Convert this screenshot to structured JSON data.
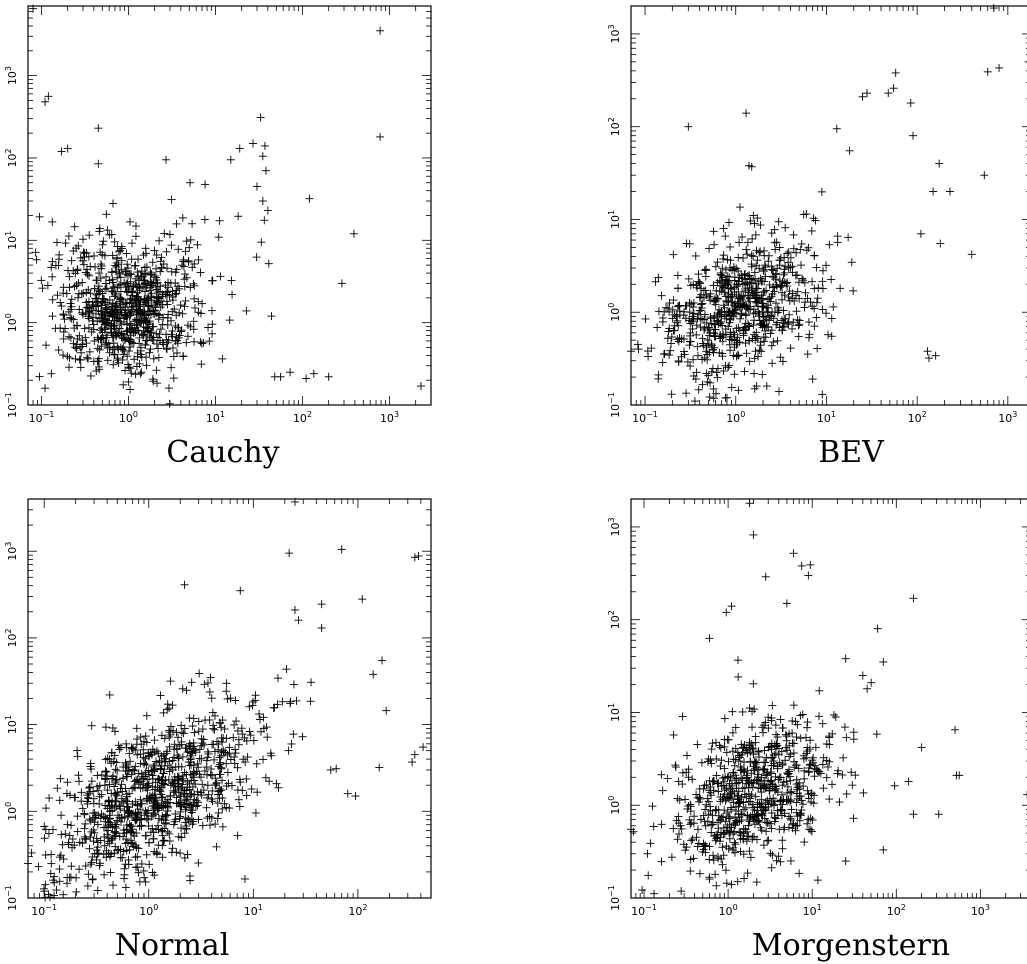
{
  "chart_data": [
    {
      "type": "scatter",
      "xlabel": "Cauchy",
      "scale": "log-log",
      "xlim": [
        0.07,
        3000
      ],
      "ylim": [
        0.1,
        7000
      ],
      "x_ticks": [
        "10^-1",
        "10^0",
        "10^1",
        "10^2",
        "10^3"
      ],
      "y_ticks": [
        "10^-1",
        "10^0",
        "10^1",
        "10^2",
        "10^3"
      ],
      "marker": "+",
      "cloud": {
        "n": 820,
        "center_log": [
          0.0,
          0.15
        ],
        "sd_log": [
          0.4,
          0.38
        ],
        "shape": "x-shaped"
      },
      "points": [
        [
          0.08,
          6500
        ],
        [
          0.11,
          480
        ],
        [
          0.12,
          560
        ],
        [
          0.17,
          120
        ],
        [
          0.2,
          130
        ],
        [
          0.45,
          230
        ],
        [
          0.45,
          85
        ],
        [
          2.7,
          95
        ],
        [
          5.1,
          50
        ],
        [
          15,
          95
        ],
        [
          19,
          130
        ],
        [
          27,
          150
        ],
        [
          33,
          310
        ],
        [
          35,
          105
        ],
        [
          37,
          140
        ],
        [
          38,
          70
        ],
        [
          30,
          45
        ],
        [
          35,
          30
        ],
        [
          40,
          23
        ],
        [
          41,
          5.2
        ],
        [
          44,
          1.2
        ],
        [
          120,
          32
        ],
        [
          390,
          12
        ],
        [
          780,
          3500
        ],
        [
          780,
          180
        ],
        [
          0.11,
          0.16
        ],
        [
          0.13,
          0.24
        ],
        [
          48,
          0.22
        ],
        [
          56,
          0.22
        ],
        [
          72,
          0.25
        ],
        [
          110,
          0.21
        ],
        [
          135,
          0.24
        ],
        [
          200,
          0.22
        ],
        [
          2300,
          0.17
        ]
      ]
    },
    {
      "type": "scatter",
      "xlabel": "BEV",
      "scale": "log-log",
      "xlim": [
        0.07,
        1800
      ],
      "ylim": [
        0.1,
        2000
      ],
      "x_ticks": [
        "10^-1",
        "10^0",
        "10^1",
        "10^2",
        "10^3"
      ],
      "y_ticks": [
        "10^-1",
        "10^0",
        "10^1",
        "10^2",
        "10^3"
      ],
      "marker": "+",
      "cloud": {
        "n": 720,
        "center_log": [
          0.05,
          0.08
        ],
        "sd_log": [
          0.45,
          0.38
        ],
        "shape": "ellipse"
      },
      "points": [
        [
          0.07,
          0.38
        ],
        [
          0.3,
          100
        ],
        [
          1.3,
          140
        ],
        [
          1.4,
          38
        ],
        [
          1.5,
          37
        ],
        [
          13,
          95
        ],
        [
          18,
          55
        ],
        [
          25,
          210
        ],
        [
          28,
          230
        ],
        [
          48,
          230
        ],
        [
          55,
          260
        ],
        [
          58,
          380
        ],
        [
          85,
          180
        ],
        [
          90,
          80
        ],
        [
          110,
          7
        ],
        [
          130,
          0.38
        ],
        [
          135,
          0.32
        ],
        [
          160,
          0.34
        ],
        [
          150,
          20
        ],
        [
          175,
          40
        ],
        [
          180,
          5.5
        ],
        [
          230,
          20
        ],
        [
          400,
          4.2
        ],
        [
          550,
          30
        ],
        [
          600,
          390
        ],
        [
          700,
          1900
        ],
        [
          800,
          430
        ],
        [
          1700,
          500
        ],
        [
          0.8,
          0.12
        ],
        [
          1.7,
          0.16
        ],
        [
          2.2,
          0.16
        ],
        [
          3,
          0.14
        ],
        [
          9,
          0.13
        ]
      ]
    },
    {
      "type": "scatter",
      "xlabel": "Normal",
      "scale": "log-log",
      "xlim": [
        0.07,
        500
      ],
      "ylim": [
        0.1,
        4000
      ],
      "x_ticks": [
        "10^-1",
        "10^0",
        "10^1",
        "10^2"
      ],
      "y_ticks": [
        "10^-1",
        "10^0",
        "10^1",
        "10^2",
        "10^3"
      ],
      "marker": "+",
      "cloud": {
        "n": 960,
        "center_log": [
          0.05,
          0.2
        ],
        "sd_log": [
          0.5,
          0.5
        ],
        "correlation": 0.55
      },
      "points": [
        [
          0.07,
          0.25
        ],
        [
          0.1,
          0.12
        ],
        [
          0.11,
          0.11
        ],
        [
          2.2,
          410
        ],
        [
          7.5,
          350
        ],
        [
          22,
          950
        ],
        [
          25,
          3700
        ],
        [
          25,
          210
        ],
        [
          27,
          160
        ],
        [
          45,
          245
        ],
        [
          45,
          130
        ],
        [
          70,
          1050
        ],
        [
          110,
          280
        ],
        [
          350,
          850
        ],
        [
          380,
          880
        ],
        [
          170,
          55
        ],
        [
          140,
          38
        ],
        [
          160,
          3.2
        ],
        [
          80,
          1.6
        ],
        [
          330,
          3.7
        ],
        [
          350,
          4.5
        ],
        [
          420,
          5.5
        ],
        [
          55,
          3
        ],
        [
          62,
          3.1
        ],
        [
          95,
          1.5
        ]
      ]
    },
    {
      "type": "scatter",
      "xlabel": "Morgenstern",
      "scale": "log-log",
      "xlim": [
        0.07,
        4000
      ],
      "ylim": [
        0.1,
        2000
      ],
      "x_ticks": [
        "10^-1",
        "10^0",
        "10^1",
        "10^2",
        "10^3"
      ],
      "y_ticks": [
        "10^-1",
        "10^0",
        "10^1",
        "10^2",
        "10^3"
      ],
      "marker": "+",
      "cloud": {
        "n": 720,
        "center_log": [
          0.3,
          0.12
        ],
        "sd_log": [
          0.5,
          0.42
        ],
        "shape": "ellipse"
      },
      "points": [
        [
          0.07,
          0.55
        ],
        [
          0.11,
          0.3
        ],
        [
          1.8,
          1800
        ],
        [
          2,
          820
        ],
        [
          2.8,
          290
        ],
        [
          6,
          520
        ],
        [
          7.5,
          380
        ],
        [
          9.5,
          390
        ],
        [
          9,
          300
        ],
        [
          5,
          150
        ],
        [
          1.1,
          140
        ],
        [
          0.95,
          120
        ],
        [
          0.6,
          63
        ],
        [
          160,
          170
        ],
        [
          60,
          80
        ],
        [
          70,
          35
        ],
        [
          25,
          38
        ],
        [
          40,
          25
        ],
        [
          45,
          18
        ],
        [
          200,
          4.2
        ],
        [
          320,
          0.8
        ],
        [
          500,
          6.5
        ],
        [
          520,
          2.1
        ],
        [
          560,
          2.1
        ],
        [
          3600,
          1.3
        ],
        [
          140,
          1.8
        ],
        [
          160,
          0.8
        ],
        [
          70,
          0.33
        ],
        [
          25,
          0.25
        ],
        [
          0.6,
          0.16
        ],
        [
          0.7,
          0.18
        ],
        [
          1.1,
          0.14
        ],
        [
          1.3,
          0.15
        ]
      ]
    }
  ]
}
